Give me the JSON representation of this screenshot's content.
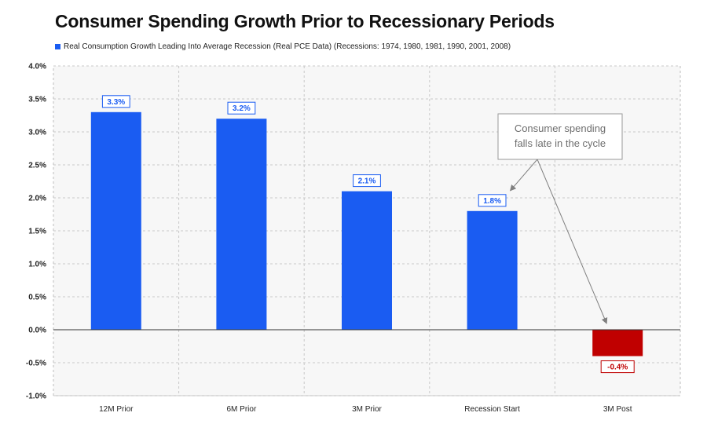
{
  "chart_data": {
    "type": "bar",
    "title": "Consumer Spending Growth Prior to Recessionary Periods",
    "legend": "Real Consumption Growth Leading Into Average Recession (Real PCE Data) (Recessions: 1974, 1980, 1981, 1990, 2001, 2008)",
    "categories": [
      "12M Prior",
      "6M Prior",
      "3M Prior",
      "Recession Start",
      "3M Post"
    ],
    "values": [
      3.3,
      3.2,
      2.1,
      1.8,
      -0.4
    ],
    "value_labels": [
      "3.3%",
      "3.2%",
      "2.1%",
      "1.8%",
      "-0.4%"
    ],
    "yticks": [
      "-1.0%",
      "-0.5%",
      "0.0%",
      "0.5%",
      "1.0%",
      "1.5%",
      "2.0%",
      "2.5%",
      "3.0%",
      "3.5%",
      "4.0%"
    ],
    "ylim": [
      -1.0,
      4.0
    ],
    "xlabel": "",
    "ylabel": "",
    "grid": true,
    "legend_position": "top-left",
    "annotation": {
      "lines": [
        "Consumer spending",
        "falls late in the cycle"
      ],
      "points_to": [
        "Recession Start",
        "3M Post"
      ]
    },
    "colors": {
      "positive": "#1a5cf2",
      "negative": "#c00000",
      "plot_background": "#f7f7f7",
      "grid": "#c8c8c8"
    }
  }
}
